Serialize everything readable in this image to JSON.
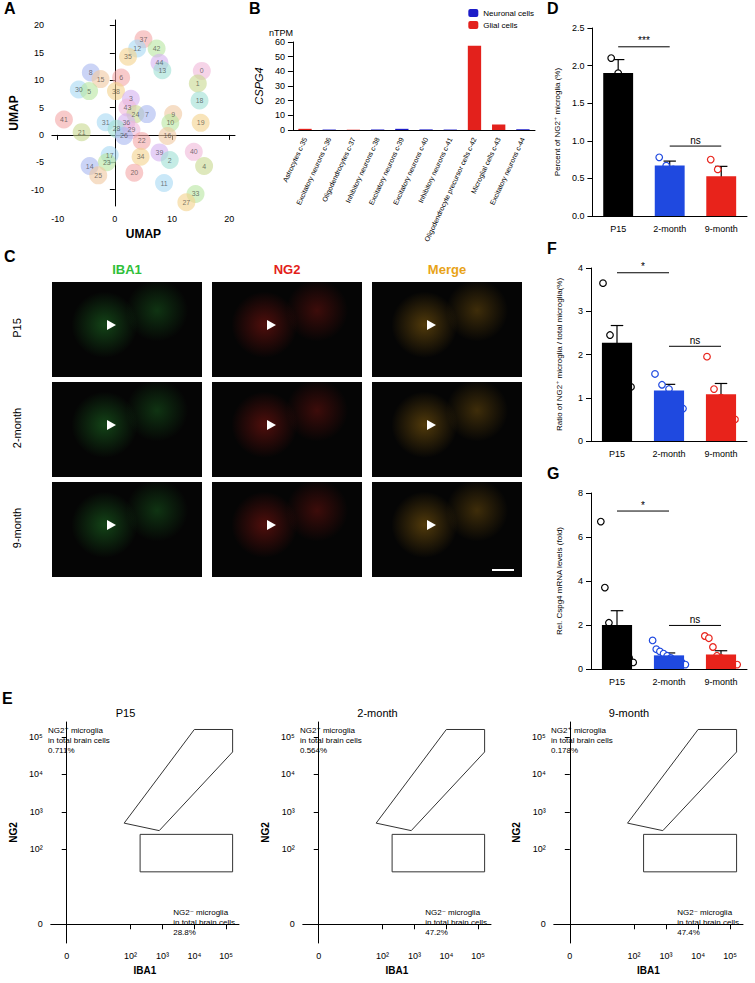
{
  "chart_data": [
    {
      "panel": "A",
      "type": "scatter",
      "x_label": "UMAP",
      "y_label": "UMAP",
      "xlim": [
        -11,
        21
      ],
      "xticks": [
        -10,
        0,
        10,
        20
      ],
      "ylim": [
        -13,
        21
      ],
      "yticks": [
        -10,
        -5,
        0,
        5,
        10,
        15,
        20
      ],
      "labels": [
        "37",
        "12",
        "42",
        "35",
        "44",
        "13",
        "0",
        "1",
        "8",
        "15",
        "6",
        "30",
        "5",
        "38",
        "3",
        "18",
        "43",
        "24",
        "7",
        "9",
        "41",
        "31",
        "10",
        "19",
        "36",
        "28",
        "29",
        "21",
        "26",
        "16",
        "22",
        "17",
        "23",
        "34",
        "39",
        "2",
        "40",
        "4",
        "14",
        "25",
        "20",
        "11",
        "33",
        "27"
      ],
      "x": [
        5.0,
        3.9,
        7.3,
        2.3,
        7.8,
        8.3,
        15.2,
        14.5,
        -4.2,
        -2.5,
        1.1,
        -6.3,
        -4.5,
        0.2,
        2.8,
        14.8,
        2.2,
        3.6,
        5.6,
        10.2,
        -8.9,
        -1.6,
        9.7,
        15.0,
        2.0,
        0.3,
        2.9,
        -5.8,
        1.6,
        9.2,
        4.7,
        -0.9,
        -1.4,
        4.5,
        7.8,
        9.6,
        13.8,
        15.6,
        -4.4,
        -2.9,
        3.4,
        8.6,
        14.1,
        12.5
      ],
      "y": [
        17.5,
        15.8,
        15.8,
        14.3,
        13.2,
        11.8,
        11.7,
        9.4,
        11.4,
        10.2,
        10.5,
        8.3,
        8.0,
        8.0,
        6.6,
        6.3,
        5.0,
        3.8,
        3.8,
        3.8,
        2.8,
        2.3,
        2.2,
        2.2,
        2.3,
        1.1,
        0.9,
        0.5,
        -0.2,
        -0.2,
        -1.1,
        -3.7,
        -5.0,
        -4.0,
        -3.2,
        -4.6,
        -3.1,
        -5.7,
        -5.7,
        -7.4,
        -6.9,
        -8.8,
        -10.8,
        -12.3
      ]
    },
    {
      "panel": "B",
      "type": "bar",
      "y_label": "CSPG4",
      "y_unit": "nTPM",
      "categories": [
        "Astrocytes c-35",
        "Excitatory neurons c-36",
        "Oligodendrocytes c-37",
        "Inhibitory neurons c-38",
        "Excitatory neurons c-39",
        "Excitatory neurons c-40",
        "Inhibitory neurons c-41",
        "Oligodendrocyte precursor cells c-42",
        "Microglial cells c-43",
        "Excitatory neurons c-44"
      ],
      "series": [
        {
          "name": "Neuronal cells",
          "color": "#1c1cc8",
          "values": [
            null,
            0.3,
            null,
            0.3,
            0.8,
            0.4,
            0.3,
            null,
            null,
            0.5
          ]
        },
        {
          "name": "Glial cells",
          "color": "#e3211c",
          "values": [
            0.8,
            null,
            0.2,
            null,
            null,
            null,
            null,
            57.5,
            3.8,
            null
          ]
        }
      ],
      "stacked": true,
      "legend": "upper right",
      "ylim": [
        0,
        60
      ],
      "yticks": [
        0,
        10,
        20,
        30,
        40,
        50,
        60
      ]
    },
    {
      "panel": "D",
      "type": "bar",
      "y_label": "Percent of NG2⁺ microglia (%)",
      "categories": [
        "P15",
        "2-month",
        "9-month"
      ],
      "colors": [
        "#000000",
        "#1f49e0",
        "#e8231b"
      ],
      "values": [
        1.9,
        0.67,
        0.53
      ],
      "errors": [
        0.18,
        0.06,
        0.13
      ],
      "points": [
        [
          2.1,
          1.9,
          1.7
        ],
        [
          0.78,
          0.67,
          0.62,
          0.6
        ],
        [
          0.75,
          0.62,
          0.4,
          0.35
        ]
      ],
      "significance": [
        {
          "from": 0,
          "to": 1,
          "label": "***"
        },
        {
          "from": 1,
          "to": 2,
          "label": "ns"
        }
      ],
      "ylim": [
        0,
        2.5
      ],
      "yticks": [
        {
          "value": 0,
          "label": "0.0"
        },
        {
          "value": 0.5,
          "label": "0.5"
        },
        {
          "value": 1,
          "label": "1.0"
        },
        {
          "value": 1.5,
          "label": "1.5"
        },
        {
          "value": 2,
          "label": "2.0"
        },
        {
          "value": 2.5,
          "label": "2.5"
        }
      ]
    },
    {
      "panel": "F",
      "type": "bar",
      "y_label": "Ratio of NG2⁺ microglia / total microglia(%)",
      "categories": [
        "P15",
        "2-month",
        "9-month"
      ],
      "colors": [
        "#000000",
        "#1f49e0",
        "#e8231b"
      ],
      "values": [
        2.27,
        1.17,
        1.08
      ],
      "errors": [
        0.4,
        0.14,
        0.25
      ],
      "points": [
        [
          3.65,
          2.45,
          2.05,
          1.95,
          1.25
        ],
        [
          1.55,
          1.3,
          1.2,
          1.05,
          0.75
        ],
        [
          1.95,
          1.2,
          1.0,
          0.75,
          0.5
        ]
      ],
      "significance": [
        {
          "from": 0,
          "to": 1,
          "label": "*"
        },
        {
          "from": 1,
          "to": 2,
          "label": "ns"
        }
      ],
      "ylim": [
        0,
        4
      ],
      "yticks": [
        0,
        1,
        2,
        3,
        4
      ]
    },
    {
      "panel": "G",
      "type": "bar",
      "y_label": "Rel. Cspg4 mRNA levels (fold)",
      "categories": [
        "P15",
        "2-month",
        "9-month"
      ],
      "colors": [
        "#000000",
        "#1f49e0",
        "#e8231b"
      ],
      "values": [
        2.0,
        0.62,
        0.66
      ],
      "errors": [
        0.65,
        0.11,
        0.17
      ],
      "points": [
        [
          6.7,
          3.7,
          2.1,
          1.7,
          1.3,
          1.0,
          0.8,
          0.5,
          0.3
        ],
        [
          1.3,
          0.9,
          0.8,
          0.7,
          0.6,
          0.5,
          0.4,
          0.3,
          0.3,
          0.2
        ],
        [
          1.5,
          1.4,
          1.0,
          0.6,
          0.5,
          0.4,
          0.3,
          0.2,
          0.2
        ]
      ],
      "significance": [
        {
          "from": 0,
          "to": 1,
          "label": "*"
        },
        {
          "from": 1,
          "to": 2,
          "label": "ns"
        }
      ],
      "ylim": [
        0,
        8
      ],
      "yticks": [
        0,
        2,
        4,
        6,
        8
      ]
    },
    {
      "panel": "E",
      "type": "gate",
      "title": "P15",
      "x_label": "IBA1",
      "y_label": "NG2",
      "xlim": [
        -0.5,
        5.4
      ],
      "xticks": [
        0,
        {
          "value": 2,
          "label": "10²"
        },
        {
          "value": 3,
          "label": "10³"
        },
        {
          "value": 4,
          "label": "10⁴"
        },
        {
          "value": 5,
          "label": "10⁵"
        }
      ],
      "ylim": [
        -0.5,
        5.4
      ],
      "yticks": [
        0,
        {
          "value": 2,
          "label": "10²"
        },
        {
          "value": 3,
          "label": "10³"
        },
        {
          "value": 4,
          "label": "10⁴"
        },
        {
          "value": 5,
          "label": "10⁵"
        }
      ],
      "gates": [
        {
          "label": "NG2⁺ microglia\nin total brain cells",
          "value": 0.711,
          "value_label": "0.711%",
          "x": [
            1.8,
            2.9,
            5.2,
            5.2,
            4.0,
            1.8
          ],
          "y": [
            2.7,
            2.5,
            4.6,
            5.2,
            5.2,
            2.7
          ]
        },
        {
          "label": "NG2⁻ microglia\nin total brain cells",
          "value": 28.8,
          "value_label": "28.8%",
          "x": [
            2.3,
            5.2,
            5.2,
            2.3,
            2.3
          ],
          "y": [
            1.4,
            1.4,
            2.4,
            2.4,
            1.4
          ]
        }
      ]
    },
    {
      "type": "gate",
      "title": "2-month",
      "x_label": "IBA1",
      "y_label": "NG2",
      "xlim": [
        -0.5,
        5.4
      ],
      "xticks": [
        0,
        {
          "value": 2,
          "label": "10²"
        },
        {
          "value": 3,
          "label": "10³"
        },
        {
          "value": 4,
          "label": "10⁴"
        },
        {
          "value": 5,
          "label": "10⁵"
        }
      ],
      "ylim": [
        -0.5,
        5.4
      ],
      "yticks": [
        0,
        {
          "value": 2,
          "label": "10²"
        },
        {
          "value": 3,
          "label": "10³"
        },
        {
          "value": 4,
          "label": "10⁴"
        },
        {
          "value": 5,
          "label": "10⁵"
        }
      ],
      "gates": [
        {
          "label": "NG2⁺ microglia\nin total brain cells",
          "value": 0.564,
          "value_label": "0.564%",
          "x": [
            1.8,
            2.9,
            5.2,
            5.2,
            4.0,
            1.8
          ],
          "y": [
            2.7,
            2.5,
            4.6,
            5.2,
            5.2,
            2.7
          ]
        },
        {
          "label": "NG2⁻ microglia\nin total brain cells",
          "value": 47.2,
          "value_label": "47.2%",
          "x": [
            2.3,
            5.2,
            5.2,
            2.3,
            2.3
          ],
          "y": [
            1.4,
            1.4,
            2.4,
            2.4,
            1.4
          ]
        }
      ]
    },
    {
      "type": "gate",
      "title": "9-month",
      "x_label": "IBA1",
      "y_label": "NG2",
      "xlim": [
        -0.5,
        5.4
      ],
      "xticks": [
        0,
        {
          "value": 2,
          "label": "10²"
        },
        {
          "value": 3,
          "label": "10³"
        },
        {
          "value": 4,
          "label": "10⁴"
        },
        {
          "value": 5,
          "label": "10⁵"
        }
      ],
      "ylim": [
        -0.5,
        5.4
      ],
      "yticks": [
        0,
        {
          "value": 2,
          "label": "10²"
        },
        {
          "value": 3,
          "label": "10³"
        },
        {
          "value": 4,
          "label": "10⁴"
        },
        {
          "value": 5,
          "label": "10⁵"
        }
      ],
      "gates": [
        {
          "label": "NG2⁺ microglia\nin total brain cells",
          "value": 0.178,
          "value_label": "0.178%",
          "x": [
            1.8,
            2.9,
            5.2,
            5.2,
            4.0,
            1.8
          ],
          "y": [
            2.7,
            2.5,
            4.6,
            5.2,
            5.2,
            2.7
          ]
        },
        {
          "label": "NG2⁻ microglia\nin total brain cells",
          "value": 47.4,
          "value_label": "47.4%",
          "x": [
            2.3,
            5.2,
            5.2,
            2.3,
            2.3
          ],
          "y": [
            1.4,
            1.4,
            2.4,
            2.4,
            1.4
          ]
        }
      ]
    }
  ],
  "images": {
    "panel": "C",
    "columns": [
      {
        "label": "IBA1",
        "color": "#2fbf3a"
      },
      {
        "label": "NG2",
        "color": "#e32119"
      },
      {
        "label": "Merge",
        "color": "#e8a317"
      }
    ],
    "rows": [
      "P15",
      "2-month",
      "9-month"
    ]
  }
}
